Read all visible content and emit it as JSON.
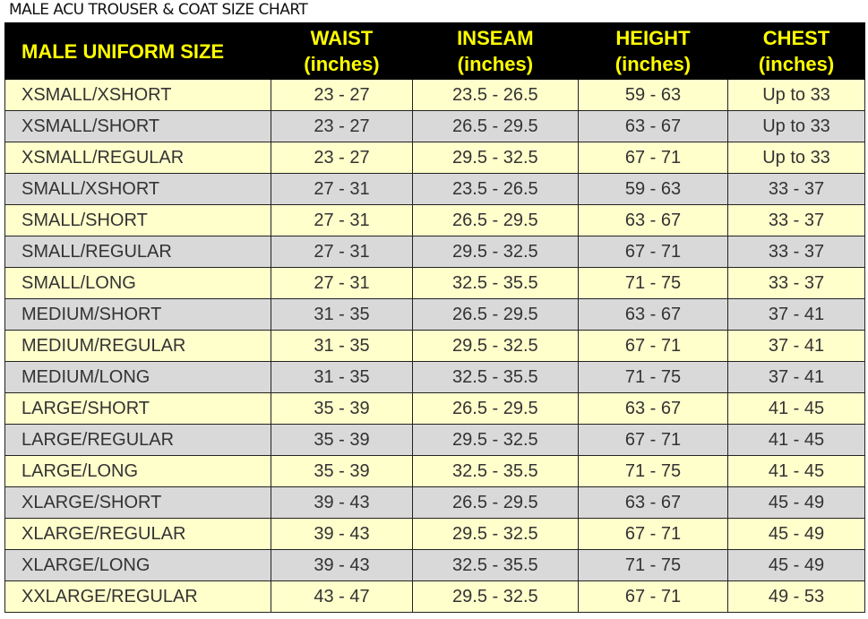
{
  "title": "MALE ACU TROUSER & COAT SIZE CHART",
  "colors": {
    "header_bg": "#000000",
    "header_text": "#ffff00",
    "row_odd": "#ffffcc",
    "row_even": "#d9d9d9"
  },
  "headers": [
    [
      "MALE UNIFORM SIZE",
      ""
    ],
    [
      "WAIST",
      "(inches)"
    ],
    [
      "INSEAM",
      "(inches)"
    ],
    [
      "HEIGHT",
      "(inches)"
    ],
    [
      "CHEST",
      "(inches)"
    ]
  ],
  "rows": [
    [
      "XSMALL/XSHORT",
      "23 - 27",
      "23.5 - 26.5",
      "59 - 63",
      "Up to 33"
    ],
    [
      "XSMALL/SHORT",
      "23 - 27",
      "26.5 - 29.5",
      "63 - 67",
      "Up to 33"
    ],
    [
      "XSMALL/REGULAR",
      "23 - 27",
      "29.5 - 32.5",
      "67 - 71",
      "Up to 33"
    ],
    [
      "SMALL/XSHORT",
      "27 - 31",
      "23.5 - 26.5",
      "59 - 63",
      "33 - 37"
    ],
    [
      "SMALL/SHORT",
      "27 - 31",
      "26.5 - 29.5",
      "63 - 67",
      "33 - 37"
    ],
    [
      "SMALL/REGULAR",
      "27 - 31",
      "29.5 - 32.5",
      "67 - 71",
      "33 - 37"
    ],
    [
      "SMALL/LONG",
      "27 - 31",
      "32.5 - 35.5",
      "71 - 75",
      "33 - 37"
    ],
    [
      "MEDIUM/SHORT",
      "31 - 35",
      "26.5 - 29.5",
      "63 - 67",
      "37 - 41"
    ],
    [
      "MEDIUM/REGULAR",
      "31 - 35",
      "29.5 - 32.5",
      "67 - 71",
      "37 - 41"
    ],
    [
      "MEDIUM/LONG",
      "31 - 35",
      "32.5 - 35.5",
      "71 - 75",
      "37 - 41"
    ],
    [
      "LARGE/SHORT",
      "35 - 39",
      "26.5 - 29.5",
      "63 - 67",
      "41 - 45"
    ],
    [
      "LARGE/REGULAR",
      "35 - 39",
      "29.5 - 32.5",
      "67 - 71",
      "41 - 45"
    ],
    [
      "LARGE/LONG",
      "35 - 39",
      "32.5 - 35.5",
      "71 - 75",
      "41 - 45"
    ],
    [
      "XLARGE/SHORT",
      "39 - 43",
      "26.5 - 29.5",
      "63 - 67",
      "45 - 49"
    ],
    [
      "XLARGE/REGULAR",
      "39 - 43",
      "29.5 - 32.5",
      "67 - 71",
      "45 - 49"
    ],
    [
      "XLARGE/LONG",
      "39 - 43",
      "32.5 - 35.5",
      "71 - 75",
      "45 - 49"
    ],
    [
      "XXLARGE/REGULAR",
      "43 - 47",
      "29.5 - 32.5",
      "67 - 71",
      "49 - 53"
    ]
  ]
}
